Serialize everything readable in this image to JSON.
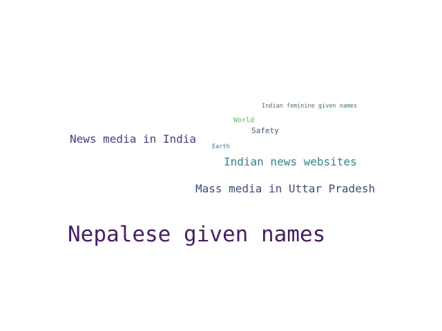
{
  "word_cloud": {
    "words": [
      {
        "text": "Nepalese given names",
        "color": "#4b1b6b"
      },
      {
        "text": "Mass media in Uttar Pradesh",
        "color": "#3b4a8a"
      },
      {
        "text": "Indian news websites",
        "color": "#2a8a93"
      },
      {
        "text": "News media in India",
        "color": "#3c3f8c"
      },
      {
        "text": "Indian feminine given names",
        "color": "#2f7e8f"
      },
      {
        "text": "World",
        "color": "#5cc163"
      },
      {
        "text": "Safety",
        "color": "#3a5a8e"
      },
      {
        "text": "Earth",
        "color": "#4a6fa0"
      }
    ]
  }
}
